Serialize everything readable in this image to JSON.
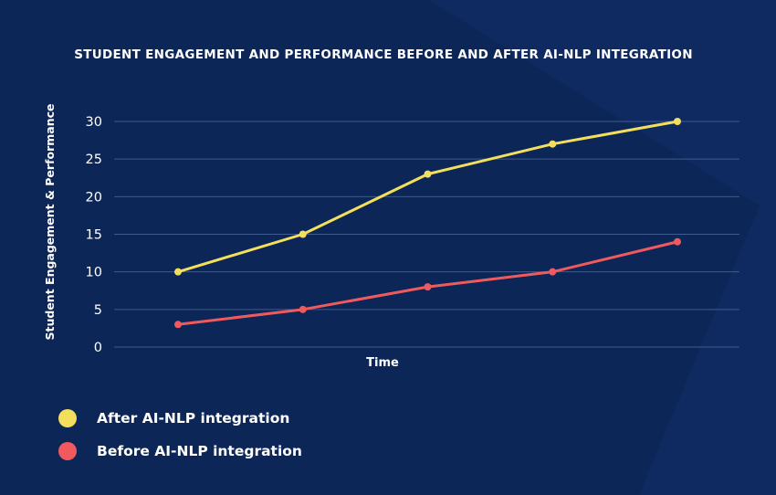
{
  "chart_data": {
    "type": "line",
    "title": "STUDENT ENGAGEMENT AND PERFORMANCE BEFORE AND AFTER AI-NLP INTEGRATION",
    "xlabel": "Time",
    "ylabel": "Student Engagement & Performance",
    "ylim": [
      0,
      30
    ],
    "yticks": [
      "0",
      "5",
      "10",
      "15",
      "20",
      "25",
      "30"
    ],
    "grid": true,
    "legend_position": "bottom-left",
    "x": [
      1,
      2,
      3,
      4,
      5
    ],
    "series": [
      {
        "name": "After AI-NLP integration",
        "color": "#f4df5c",
        "values": [
          10,
          15,
          23,
          27,
          30
        ]
      },
      {
        "name": "Before AI-NLP integration",
        "color": "#f05a5e",
        "values": [
          3,
          5,
          8,
          10,
          14
        ]
      }
    ]
  }
}
